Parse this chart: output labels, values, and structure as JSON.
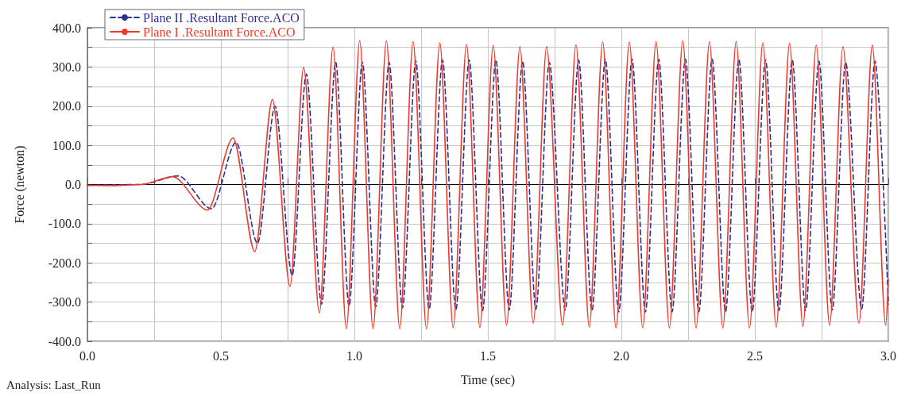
{
  "chart_data": {
    "type": "line",
    "xlabel": "Time (sec)",
    "ylabel": "Force (newton)",
    "annotations": [
      "Analysis: Last_Run"
    ],
    "xlim": [
      0,
      3
    ],
    "ylim": [
      -400,
      400
    ],
    "xticks": [
      {
        "value": 0,
        "label": "0.0"
      },
      {
        "value": 0.25,
        "label": null
      },
      {
        "value": 0.5,
        "label": "0.5"
      },
      {
        "value": 0.75,
        "label": null
      },
      {
        "value": 1,
        "label": "1.0"
      },
      {
        "value": 1.25,
        "label": null
      },
      {
        "value": 1.5,
        "label": "1.5"
      },
      {
        "value": 1.75,
        "label": null
      },
      {
        "value": 2,
        "label": "2.0"
      },
      {
        "value": 2.25,
        "label": null
      },
      {
        "value": 2.5,
        "label": "2.5"
      },
      {
        "value": 2.75,
        "label": null
      },
      {
        "value": 3,
        "label": "3.0"
      }
    ],
    "yticks": [
      {
        "value": -400,
        "label": "-400.0"
      },
      {
        "value": -350,
        "label": null
      },
      {
        "value": -300,
        "label": "-300.0"
      },
      {
        "value": -250,
        "label": null
      },
      {
        "value": -200,
        "label": "-200.0"
      },
      {
        "value": -150,
        "label": null
      },
      {
        "value": -100,
        "label": "-100.0"
      },
      {
        "value": -50,
        "label": null
      },
      {
        "value": 0,
        "label": "0.0"
      },
      {
        "value": 50,
        "label": null
      },
      {
        "value": 100,
        "label": "100.0"
      },
      {
        "value": 150,
        "label": null
      },
      {
        "value": 200,
        "label": "200.0"
      },
      {
        "value": 250,
        "label": null
      },
      {
        "value": 300,
        "label": "300.0"
      },
      {
        "value": 350,
        "label": null
      },
      {
        "value": 400,
        "label": "400.0"
      }
    ],
    "grid": true,
    "legend": "top left",
    "marker": "none",
    "ref_lines": [
      {
        "axis": "y",
        "value": 0,
        "label": null,
        "color": "#000000"
      }
    ],
    "series": [
      {
        "name": "Plane II .Resultant Force.ACO",
        "color": "#2e3192",
        "line_style": "dashed",
        "x": [
          0,
          0.2,
          0.34,
          0.465,
          0.557,
          0.637,
          0.703,
          0.767,
          0.82,
          0.877,
          0.93,
          0.98,
          1.03,
          1.08,
          1.13,
          1.18,
          1.23,
          1.28,
          1.33,
          1.38,
          1.43,
          1.48,
          1.53,
          1.58,
          1.63,
          1.68,
          1.73,
          1.79,
          1.84,
          1.89,
          1.94,
          1.99,
          2.04,
          2.09,
          2.14,
          2.19,
          2.24,
          2.29,
          2.34,
          2.39,
          2.44,
          2.49,
          2.54,
          2.59,
          2.64,
          2.69,
          2.74,
          2.79,
          2.84,
          2.9,
          2.95,
          3.0
        ],
        "values": [
          -2,
          0,
          22,
          -62,
          108,
          -150,
          200,
          -232,
          282,
          -305,
          312,
          -310,
          312,
          -312,
          312,
          -315,
          315,
          -318,
          318,
          -320,
          318,
          -322,
          318,
          -320,
          315,
          -318,
          312,
          -320,
          318,
          -322,
          320,
          -325,
          320,
          -325,
          320,
          -325,
          320,
          -325,
          320,
          -325,
          320,
          -325,
          318,
          -322,
          318,
          -322,
          315,
          -320,
          312,
          -318,
          315,
          -305
        ]
      },
      {
        "name": "Plane I .Resultant Force.ACO",
        "color": "#ee3a2a",
        "line_style": "solid",
        "x": [
          0,
          0.1,
          0.2,
          0.32,
          0.45,
          0.546,
          0.627,
          0.693,
          0.759,
          0.81,
          0.869,
          0.92,
          0.97,
          1.02,
          1.07,
          1.12,
          1.17,
          1.22,
          1.27,
          1.32,
          1.37,
          1.42,
          1.47,
          1.52,
          1.57,
          1.62,
          1.67,
          1.72,
          1.78,
          1.83,
          1.88,
          1.93,
          1.98,
          2.03,
          2.08,
          2.13,
          2.18,
          2.23,
          2.28,
          2.33,
          2.38,
          2.43,
          2.48,
          2.53,
          2.58,
          2.63,
          2.68,
          2.73,
          2.78,
          2.83,
          2.89,
          2.94,
          2.99,
          3.0
        ],
        "values": [
          -2,
          -3,
          0,
          20,
          -65,
          119,
          -171,
          217,
          -260,
          299,
          -328,
          351,
          -368,
          367,
          -368,
          367,
          -368,
          365,
          -368,
          362,
          -365,
          358,
          -365,
          355,
          -359,
          352,
          -354,
          352,
          -359,
          357,
          -364,
          364,
          -366,
          364,
          -366,
          365,
          -366,
          367,
          -366,
          365,
          -366,
          365,
          -366,
          362,
          -364,
          361,
          -362,
          356,
          -359,
          352,
          -354,
          356,
          -359,
          -242
        ]
      }
    ]
  }
}
